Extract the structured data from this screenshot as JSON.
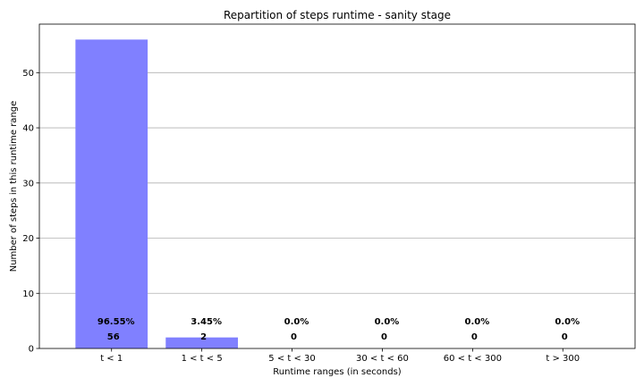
{
  "chart_data": {
    "type": "bar",
    "title": "Repartition of steps runtime - sanity stage",
    "xlabel": "Runtime ranges (in seconds)",
    "ylabel": "Number of steps in this runtime range",
    "categories": [
      "t < 1",
      "1 < t < 5",
      "5 < t < 30",
      "30 < t < 60",
      "60 < t < 300",
      "t > 300"
    ],
    "values": [
      56,
      2,
      0,
      0,
      0,
      0
    ],
    "percent_labels": [
      "96.55%",
      "3.45%",
      "0.0%",
      "0.0%",
      "0.0%",
      "0.0%"
    ],
    "count_labels": [
      "56",
      "2",
      "0",
      "0",
      "0",
      "0"
    ],
    "ylim": [
      0,
      58.8
    ],
    "yticks": [
      0,
      10,
      20,
      30,
      40,
      50
    ],
    "ytick_labels": [
      "0",
      "10",
      "20",
      "30",
      "40",
      "50"
    ],
    "grid": "y",
    "bar_color": "#8080ff"
  }
}
